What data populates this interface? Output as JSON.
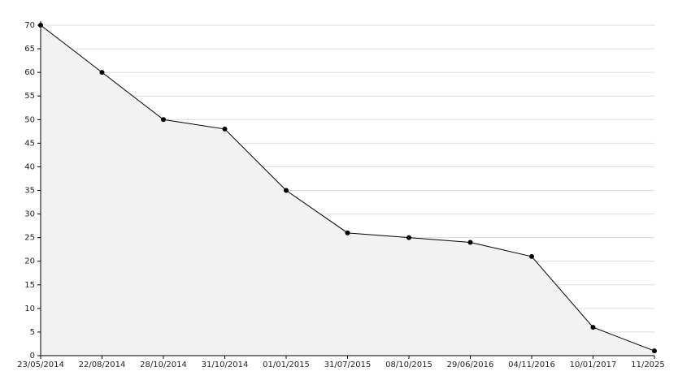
{
  "chart_data": {
    "type": "area",
    "categories": [
      "23/05/2014",
      "22/08/2014",
      "28/10/2014",
      "31/10/2014",
      "01/01/2015",
      "31/07/2015",
      "08/10/2015",
      "29/06/2016",
      "04/11/2016",
      "10/01/2017",
      "11/2025"
    ],
    "values": [
      70,
      60,
      50,
      48,
      35,
      26,
      25,
      24,
      21,
      6,
      1
    ],
    "color": "#000000",
    "fill": "#f2f2f2",
    "ylim": [
      0,
      70
    ],
    "yticks": [
      0,
      5,
      10,
      15,
      20,
      25,
      30,
      35,
      40,
      45,
      50,
      55,
      60,
      65,
      70
    ],
    "grid": true
  }
}
